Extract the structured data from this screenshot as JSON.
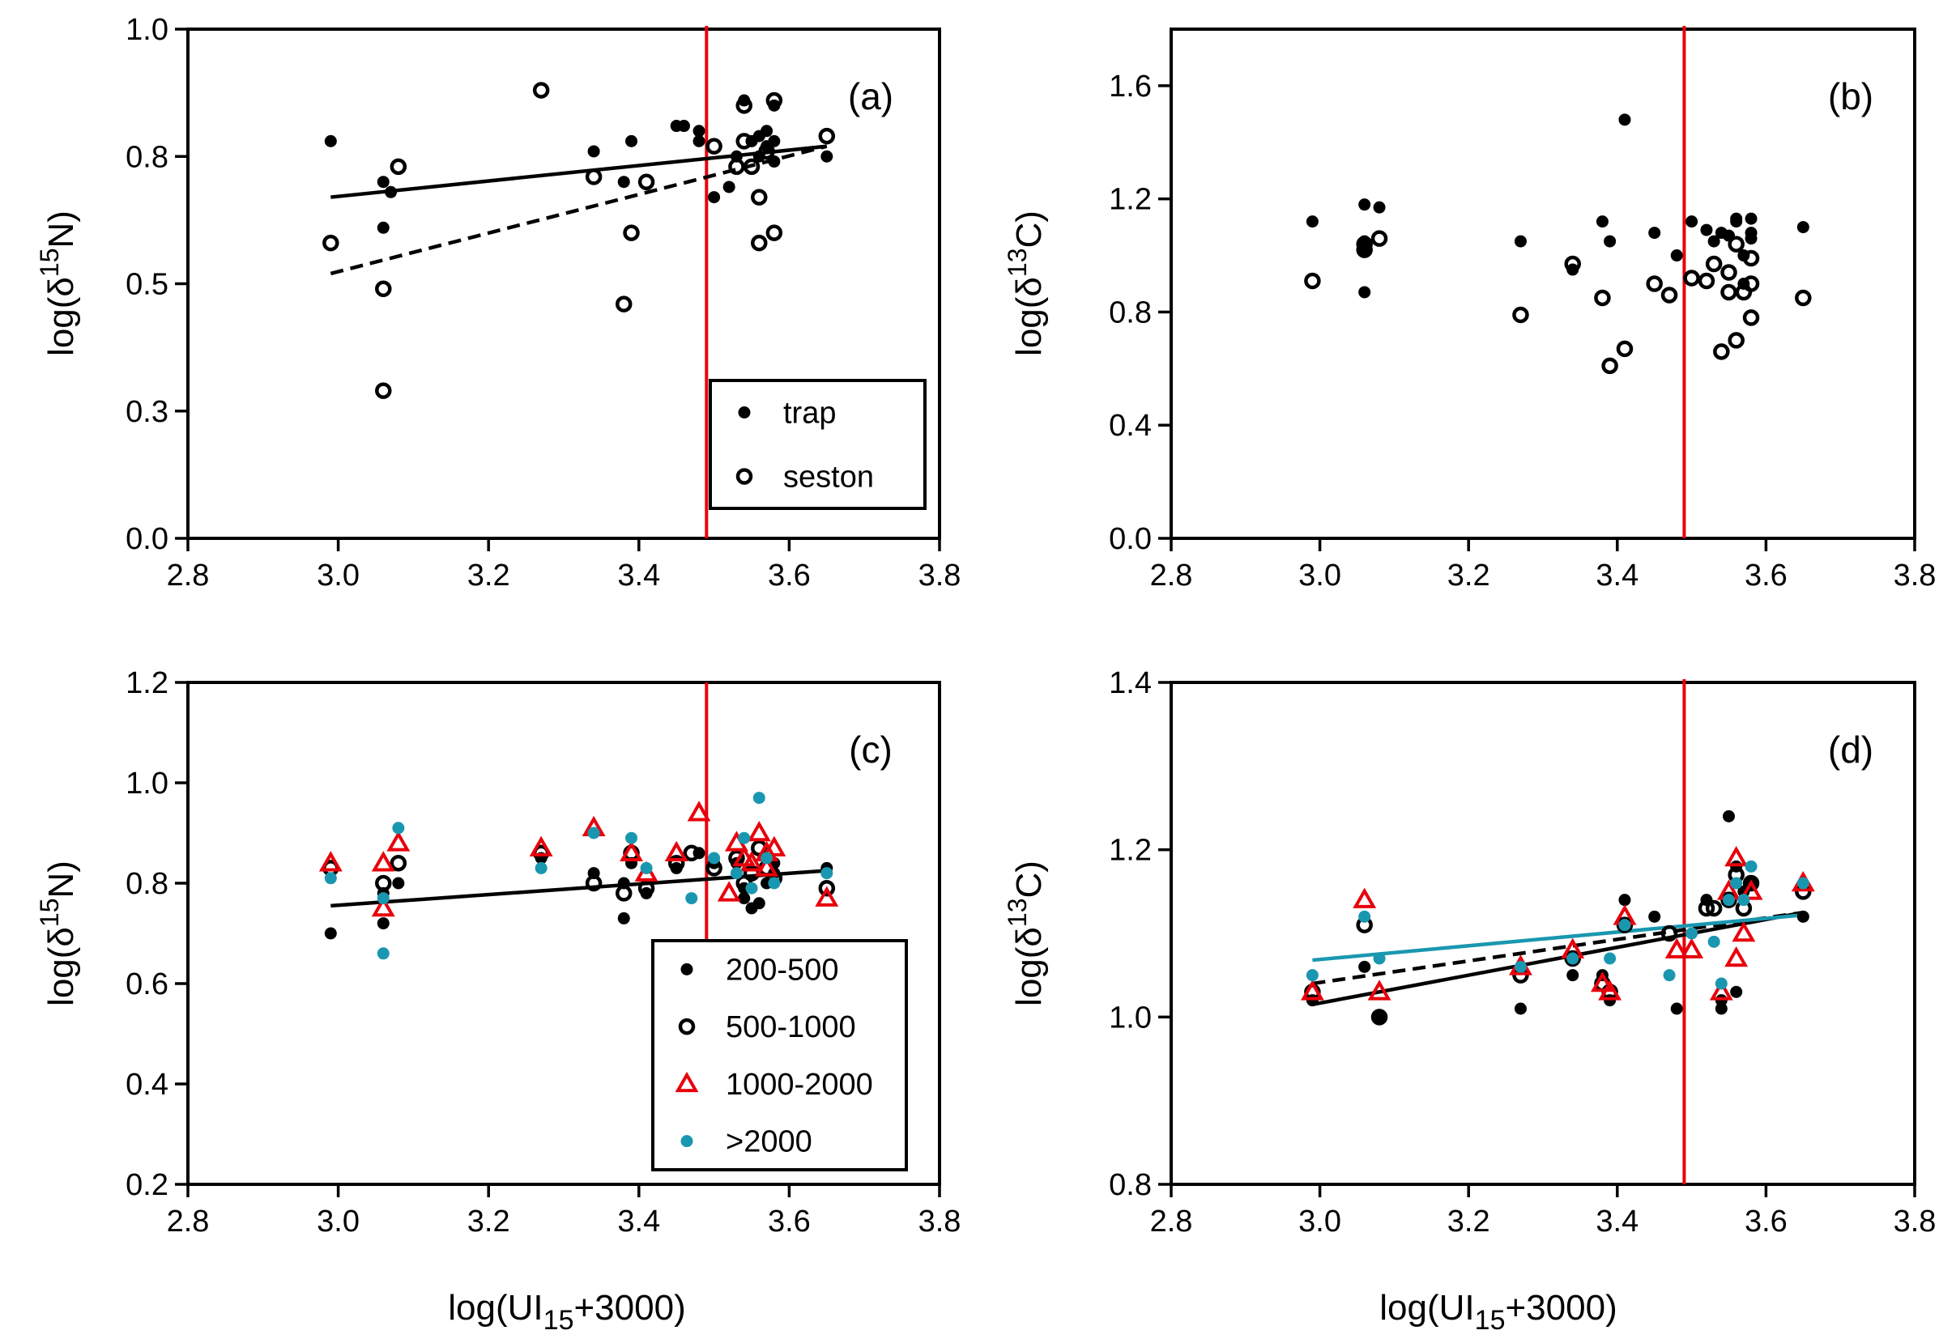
{
  "figure": {
    "x_axis_title_left": "log(UI15+3000)",
    "x_axis_title_right": "log(UI15+3000)"
  },
  "colors": {
    "black": "#000000",
    "red": "#e8000b",
    "teal": "#1a97b0",
    "frame": "#000000"
  },
  "chart_data": [
    {
      "id": "a",
      "type": "scatter",
      "panel_label": "(a)",
      "xlabel": "log(UI15+3000)",
      "ylabel": "log(δ15N)",
      "xlim": [
        2.8,
        3.8
      ],
      "ylim": [
        0.0,
        1.0
      ],
      "xticks": [
        "2.8",
        "3.0",
        "3.2",
        "3.4",
        "3.6",
        "3.8"
      ],
      "yticks": [
        "0.0",
        "0.3",
        "0.5",
        "0.8",
        "1.0"
      ],
      "ytick_values": [
        0.0,
        0.25,
        0.5,
        0.75,
        1.0
      ],
      "vline": 3.49,
      "legend": [
        "trap",
        "seston"
      ],
      "series": [
        {
          "name": "trap",
          "marker": "dot",
          "color": "#000000",
          "x": [
            2.99,
            3.06,
            3.06,
            3.07,
            3.34,
            3.38,
            3.39,
            3.45,
            3.46,
            3.48,
            3.48,
            3.5,
            3.52,
            3.53,
            3.54,
            3.55,
            3.55,
            3.56,
            3.56,
            3.57,
            3.57,
            3.58,
            3.58,
            3.58,
            3.65
          ],
          "y": [
            0.78,
            0.7,
            0.61,
            0.68,
            0.76,
            0.7,
            0.78,
            0.81,
            0.81,
            0.8,
            0.78,
            0.67,
            0.69,
            0.75,
            0.86,
            0.78,
            0.78,
            0.79,
            0.75,
            0.8,
            0.77,
            0.85,
            0.78,
            0.74,
            0.75
          ]
        },
        {
          "name": "seston",
          "marker": "circle",
          "color": "#000000",
          "x": [
            2.99,
            3.06,
            3.06,
            3.08,
            3.27,
            3.34,
            3.38,
            3.39,
            3.41,
            3.5,
            3.53,
            3.54,
            3.54,
            3.55,
            3.56,
            3.56,
            3.57,
            3.58,
            3.58,
            3.65
          ],
          "y": [
            0.58,
            0.49,
            0.29,
            0.73,
            0.88,
            0.71,
            0.46,
            0.6,
            0.7,
            0.77,
            0.73,
            0.85,
            0.78,
            0.73,
            0.67,
            0.58,
            0.76,
            0.86,
            0.6,
            0.79
          ]
        }
      ],
      "fits": [
        {
          "series": "trap",
          "style": "solid",
          "color": "#000000",
          "x": [
            2.99,
            3.65
          ],
          "y": [
            0.67,
            0.77
          ]
        },
        {
          "series": "seston",
          "style": "dashed",
          "color": "#000000",
          "x": [
            2.99,
            3.65
          ],
          "y": [
            0.52,
            0.77
          ]
        }
      ]
    },
    {
      "id": "b",
      "type": "scatter",
      "panel_label": "(b)",
      "xlabel": "log(UI15+3000)",
      "ylabel": "log(δ13C)",
      "xlim": [
        2.8,
        3.8
      ],
      "ylim": [
        0.0,
        1.8
      ],
      "xticks": [
        "2.8",
        "3.0",
        "3.2",
        "3.4",
        "3.6",
        "3.8"
      ],
      "yticks": [
        "0.0",
        "0.4",
        "0.8",
        "1.2",
        "1.6"
      ],
      "ytick_values": [
        0.0,
        0.4,
        0.8,
        1.2,
        1.6
      ],
      "vline": 3.49,
      "legend": [],
      "series": [
        {
          "name": "trap",
          "marker": "dot",
          "color": "#000000",
          "x": [
            2.99,
            3.06,
            3.06,
            3.06,
            3.06,
            3.08,
            3.27,
            3.34,
            3.38,
            3.39,
            3.41,
            3.45,
            3.48,
            3.5,
            3.52,
            3.53,
            3.54,
            3.55,
            3.56,
            3.56,
            3.57,
            3.57,
            3.58,
            3.58,
            3.58,
            3.65
          ],
          "y": [
            1.12,
            1.18,
            1.05,
            1.02,
            0.87,
            1.17,
            1.05,
            0.95,
            1.12,
            1.05,
            1.48,
            1.08,
            1.0,
            1.12,
            1.09,
            1.05,
            1.08,
            1.07,
            1.13,
            1.12,
            1.0,
            0.9,
            1.13,
            1.08,
            1.06,
            1.1
          ]
        },
        {
          "name": "seston",
          "marker": "circle",
          "color": "#000000",
          "x": [
            2.99,
            3.06,
            3.06,
            3.08,
            3.27,
            3.34,
            3.38,
            3.39,
            3.41,
            3.45,
            3.47,
            3.5,
            3.52,
            3.53,
            3.54,
            3.55,
            3.55,
            3.56,
            3.56,
            3.57,
            3.58,
            3.58,
            3.58,
            3.65
          ],
          "y": [
            0.91,
            1.04,
            1.02,
            1.06,
            0.79,
            0.97,
            0.85,
            0.61,
            0.67,
            0.9,
            0.86,
            0.92,
            0.91,
            0.97,
            0.66,
            0.87,
            0.94,
            0.7,
            1.04,
            0.87,
            0.99,
            0.9,
            0.78,
            0.85
          ]
        }
      ],
      "fits": []
    },
    {
      "id": "c",
      "type": "scatter",
      "panel_label": "(c)",
      "xlabel": "log(UI15+3000)",
      "ylabel": "log(δ15N)",
      "xlim": [
        2.8,
        3.8
      ],
      "ylim": [
        0.2,
        1.2
      ],
      "xticks": [
        "2.8",
        "3.0",
        "3.2",
        "3.4",
        "3.6",
        "3.8"
      ],
      "yticks": [
        "0.2",
        "0.4",
        "0.6",
        "0.8",
        "1.0",
        "1.2"
      ],
      "ytick_values": [
        0.2,
        0.4,
        0.6,
        0.8,
        1.0,
        1.2
      ],
      "vline": 3.49,
      "legend": [
        "200-500",
        "500-1000",
        "1000-2000",
        ">2000"
      ],
      "series": [
        {
          "name": "200-500",
          "marker": "dot",
          "color": "#000000",
          "x": [
            2.99,
            3.06,
            3.06,
            3.08,
            3.27,
            3.34,
            3.38,
            3.38,
            3.39,
            3.41,
            3.45,
            3.48,
            3.5,
            3.53,
            3.54,
            3.54,
            3.55,
            3.56,
            3.57,
            3.58,
            3.58,
            3.65
          ],
          "y": [
            0.7,
            0.72,
            0.78,
            0.8,
            0.85,
            0.82,
            0.73,
            0.8,
            0.84,
            0.78,
            0.83,
            0.86,
            0.84,
            0.84,
            0.79,
            0.77,
            0.75,
            0.76,
            0.8,
            0.84,
            0.82,
            0.83
          ]
        },
        {
          "name": "500-1000",
          "marker": "circle",
          "color": "#000000",
          "x": [
            2.99,
            3.06,
            3.08,
            3.27,
            3.34,
            3.38,
            3.39,
            3.41,
            3.45,
            3.47,
            3.5,
            3.53,
            3.54,
            3.55,
            3.56,
            3.57,
            3.58,
            3.65
          ],
          "y": [
            0.83,
            0.8,
            0.84,
            0.86,
            0.8,
            0.78,
            0.86,
            0.79,
            0.84,
            0.86,
            0.83,
            0.85,
            0.8,
            0.82,
            0.87,
            0.83,
            0.81,
            0.79
          ]
        },
        {
          "name": "1000-2000",
          "marker": "triangle",
          "color": "#e8000b",
          "x": [
            2.99,
            3.06,
            3.06,
            3.08,
            3.27,
            3.34,
            3.39,
            3.41,
            3.45,
            3.48,
            3.52,
            3.53,
            3.54,
            3.55,
            3.56,
            3.57,
            3.57,
            3.58,
            3.65
          ],
          "y": [
            0.84,
            0.84,
            0.75,
            0.88,
            0.87,
            0.91,
            0.86,
            0.82,
            0.86,
            0.94,
            0.78,
            0.88,
            0.85,
            0.84,
            0.9,
            0.86,
            0.83,
            0.87,
            0.77
          ]
        },
        {
          "name": ">2000",
          "marker": "dot",
          "color": "#1a97b0",
          "x": [
            2.99,
            3.06,
            3.06,
            3.08,
            3.27,
            3.34,
            3.39,
            3.41,
            3.47,
            3.5,
            3.53,
            3.54,
            3.55,
            3.56,
            3.57,
            3.58,
            3.65
          ],
          "y": [
            0.81,
            0.66,
            0.77,
            0.91,
            0.83,
            0.9,
            0.89,
            0.83,
            0.77,
            0.85,
            0.82,
            0.89,
            0.79,
            0.97,
            0.85,
            0.8,
            0.82
          ]
        }
      ],
      "fits": [
        {
          "series": "all",
          "style": "solid",
          "color": "#000000",
          "x": [
            2.99,
            3.65
          ],
          "y": [
            0.755,
            0.825
          ]
        }
      ]
    },
    {
      "id": "d",
      "type": "scatter",
      "panel_label": "(d)",
      "xlabel": "log(UI15+3000)",
      "ylabel": "log(δ13C)",
      "xlim": [
        2.8,
        3.8
      ],
      "ylim": [
        0.8,
        1.4
      ],
      "xticks": [
        "2.8",
        "3.0",
        "3.2",
        "3.4",
        "3.6",
        "3.8"
      ],
      "yticks": [
        "0.8",
        "1.0",
        "1.2",
        "1.4"
      ],
      "ytick_values": [
        0.8,
        1.0,
        1.2,
        1.4
      ],
      "vline": 3.49,
      "legend": [],
      "series": [
        {
          "name": "200-500",
          "marker": "dot",
          "color": "#000000",
          "x": [
            2.99,
            3.06,
            3.08,
            3.27,
            3.34,
            3.38,
            3.39,
            3.41,
            3.45,
            3.48,
            3.52,
            3.54,
            3.54,
            3.55,
            3.56,
            3.56,
            3.57,
            3.58,
            3.65
          ],
          "y": [
            1.02,
            1.06,
            1.0,
            1.01,
            1.05,
            1.05,
            1.02,
            1.14,
            1.12,
            1.01,
            1.14,
            1.01,
            1.02,
            1.24,
            1.03,
            1.18,
            1.15,
            1.16,
            1.12
          ]
        },
        {
          "name": "500-1000",
          "marker": "circle",
          "color": "#000000",
          "x": [
            2.99,
            3.06,
            3.08,
            3.27,
            3.34,
            3.38,
            3.39,
            3.41,
            3.47,
            3.52,
            3.53,
            3.55,
            3.56,
            3.57,
            3.58,
            3.65
          ],
          "y": [
            1.03,
            1.11,
            1.0,
            1.05,
            1.07,
            1.04,
            1.03,
            1.11,
            1.1,
            1.13,
            1.13,
            1.14,
            1.17,
            1.13,
            1.16,
            1.15
          ]
        },
        {
          "name": "1000-2000",
          "marker": "triangle",
          "color": "#e8000b",
          "x": [
            2.99,
            3.06,
            3.08,
            3.27,
            3.34,
            3.38,
            3.39,
            3.41,
            3.48,
            3.5,
            3.54,
            3.55,
            3.56,
            3.56,
            3.57,
            3.58,
            3.65
          ],
          "y": [
            1.03,
            1.14,
            1.03,
            1.06,
            1.08,
            1.04,
            1.03,
            1.12,
            1.08,
            1.08,
            1.03,
            1.15,
            1.19,
            1.07,
            1.1,
            1.15,
            1.16
          ]
        },
        {
          "name": ">2000",
          "marker": "dot",
          "color": "#1a97b0",
          "x": [
            2.99,
            3.06,
            3.08,
            3.27,
            3.34,
            3.39,
            3.41,
            3.47,
            3.5,
            3.53,
            3.54,
            3.55,
            3.56,
            3.57,
            3.58,
            3.65
          ],
          "y": [
            1.05,
            1.12,
            1.07,
            1.06,
            1.07,
            1.07,
            1.11,
            1.05,
            1.1,
            1.09,
            1.04,
            1.14,
            1.16,
            1.14,
            1.18,
            1.16
          ]
        }
      ],
      "fits": [
        {
          "series": "200-500",
          "style": "solid",
          "color": "#000000",
          "x": [
            2.99,
            3.65
          ],
          "y": [
            1.015,
            1.125
          ]
        },
        {
          "series": "500-1000",
          "style": "dashed",
          "color": "#000000",
          "x": [
            2.99,
            3.65
          ],
          "y": [
            1.04,
            1.125
          ]
        },
        {
          "series": ">2000",
          "style": "solid",
          "color": "#1a97b0",
          "x": [
            2.99,
            3.65
          ],
          "y": [
            1.068,
            1.122
          ]
        }
      ]
    }
  ]
}
